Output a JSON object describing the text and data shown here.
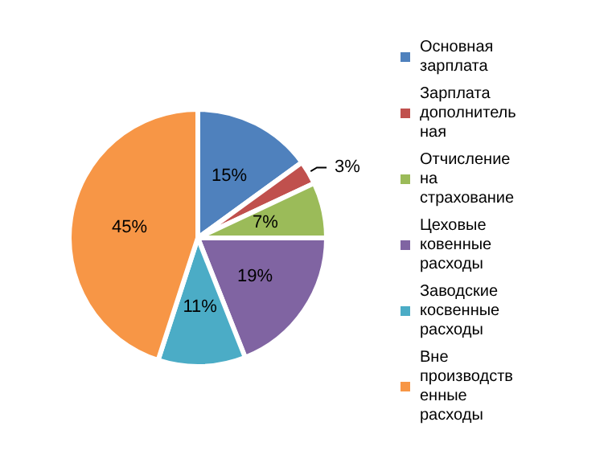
{
  "chart_data": {
    "type": "pie",
    "categories": [
      "Основная зарплата",
      "Зарплата дополнительная",
      "Отчисление на страхование",
      "Цеховые ковенные расходы",
      "Заводские косвенные расходы",
      "Вне производственные расходы"
    ],
    "values": [
      15,
      3,
      7,
      19,
      11,
      45
    ],
    "colors": [
      "#4f81bd",
      "#c0504d",
      "#9bbb59",
      "#8064a2",
      "#4bacc6",
      "#f79646"
    ],
    "value_labels": [
      "15%",
      "3%",
      "7%",
      "19%",
      "11%",
      "45%"
    ],
    "legend": "right"
  }
}
